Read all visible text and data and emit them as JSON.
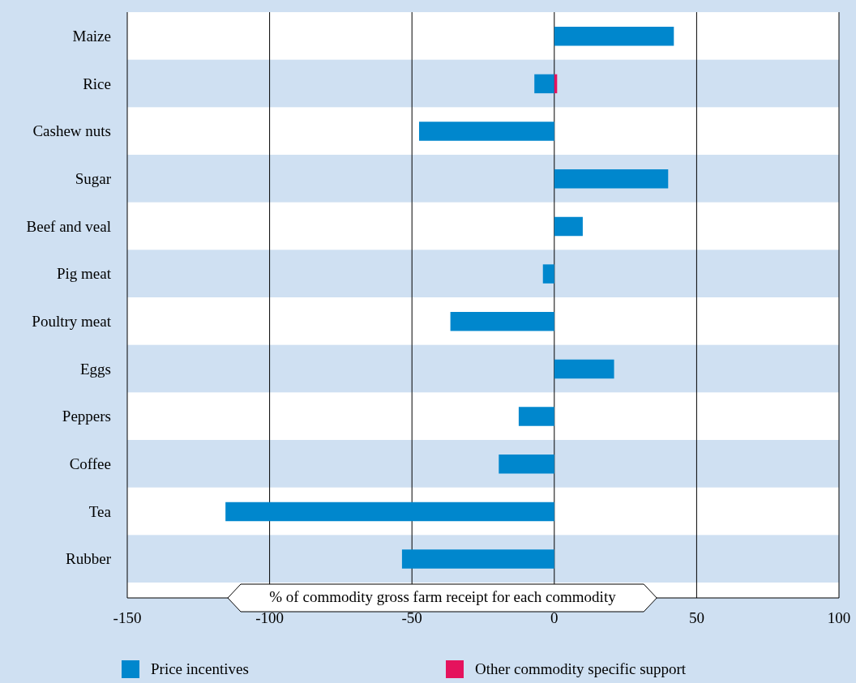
{
  "chart_data": {
    "type": "bar",
    "orientation": "horizontal",
    "stacked": true,
    "categories": [
      "Maize",
      "Rice",
      "Cashew nuts",
      "Sugar",
      "Beef and veal",
      "Pig meat",
      "Poultry meat",
      "Eggs",
      "Peppers",
      "Coffee",
      "Tea",
      "Rubber"
    ],
    "series": [
      {
        "name": "Price incentives",
        "color": "#0087cd",
        "values": [
          42,
          -7,
          -47.5,
          40,
          10,
          -4,
          -36.5,
          21,
          -12.5,
          -19.5,
          -115.5,
          -53.5
        ]
      },
      {
        "name": "Other commodity specific support",
        "color": "#e5135d",
        "values": [
          0,
          1,
          0,
          0,
          0,
          0,
          0,
          0,
          0,
          0,
          0,
          0
        ]
      }
    ],
    "xlabel": "% of commodity gross farm receipt for each commodity",
    "xlim": [
      -150,
      100
    ],
    "xticks": [
      -150,
      -100,
      -50,
      0,
      50,
      100
    ],
    "grid": "x",
    "legend": "bottom"
  }
}
